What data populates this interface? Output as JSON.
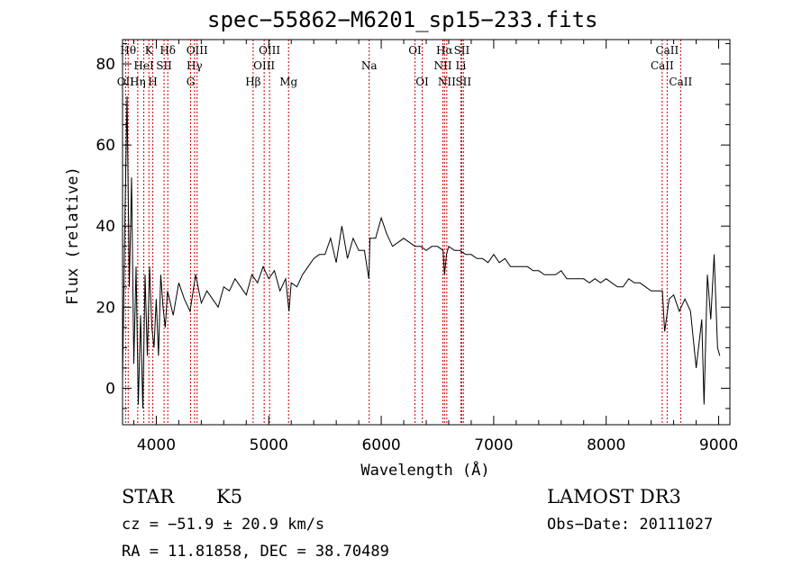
{
  "chart_data": {
    "type": "line",
    "title": "spec−55862−M6201_sp15−233.fits",
    "xlabel": "Wavelength (Å)",
    "ylabel": "Flux (relative)",
    "xlim": [
      3700,
      9100
    ],
    "ylim": [
      -9,
      86
    ],
    "xticks": [
      4000,
      5000,
      6000,
      7000,
      8000,
      9000
    ],
    "yticks": [
      0,
      20,
      40,
      60,
      80
    ],
    "grid": false,
    "series": [
      {
        "name": "flux",
        "x": [
          3700,
          3720,
          3740,
          3760,
          3780,
          3800,
          3820,
          3840,
          3860,
          3880,
          3900,
          3920,
          3940,
          3960,
          3980,
          4000,
          4020,
          4040,
          4060,
          4080,
          4100,
          4150,
          4200,
          4250,
          4300,
          4350,
          4400,
          4450,
          4500,
          4550,
          4600,
          4650,
          4700,
          4750,
          4800,
          4850,
          4900,
          4950,
          5000,
          5050,
          5100,
          5150,
          5180,
          5200,
          5250,
          5300,
          5350,
          5400,
          5450,
          5500,
          5550,
          5600,
          5650,
          5700,
          5750,
          5800,
          5850,
          5890,
          5900,
          5950,
          6000,
          6050,
          6100,
          6150,
          6200,
          6250,
          6300,
          6350,
          6400,
          6450,
          6500,
          6550,
          6563,
          6580,
          6600,
          6650,
          6700,
          6750,
          6800,
          6850,
          6900,
          6950,
          7000,
          7050,
          7100,
          7150,
          7200,
          7250,
          7300,
          7350,
          7400,
          7450,
          7500,
          7550,
          7600,
          7650,
          7700,
          7750,
          7800,
          7850,
          7900,
          7950,
          8000,
          8050,
          8100,
          8150,
          8200,
          8250,
          8300,
          8350,
          8400,
          8450,
          8500,
          8520,
          8560,
          8600,
          8650,
          8700,
          8750,
          8800,
          8850,
          8870,
          8900,
          8930,
          8960,
          8990,
          9010
        ],
        "values": [
          2,
          40,
          72,
          25,
          52,
          6,
          30,
          -4,
          18,
          -5,
          28,
          8,
          30,
          15,
          10,
          22,
          8,
          28,
          20,
          15,
          24,
          18,
          26,
          22,
          19,
          28,
          21,
          24,
          22,
          20,
          25,
          24,
          27,
          25,
          23,
          28,
          26,
          30,
          27,
          29,
          24,
          27,
          19,
          26,
          25,
          28,
          30,
          32,
          33,
          33,
          37,
          31,
          40,
          32,
          37,
          34,
          34,
          27,
          37,
          37,
          42,
          38,
          35,
          36,
          37,
          36,
          35,
          35,
          34,
          35,
          35,
          34,
          28,
          33,
          35,
          34,
          34,
          33,
          33,
          32,
          32,
          31,
          33,
          31,
          32,
          30,
          30,
          30,
          30,
          29,
          29,
          28,
          28,
          28,
          29,
          27,
          27,
          27,
          27,
          26,
          27,
          26,
          27,
          26,
          25,
          25,
          27,
          26,
          26,
          25,
          24,
          24,
          24,
          14,
          22,
          23,
          19,
          22,
          19,
          5,
          17,
          -4,
          28,
          17,
          33,
          10,
          8
        ]
      }
    ],
    "lines": [
      {
        "label": "OII",
        "wave": 3727,
        "row": 2
      },
      {
        "label": "Hθ",
        "wave": 3750,
        "row": 0
      },
      {
        "label": "Hη",
        "wave": 3835,
        "row": 2
      },
      {
        "label": "HeI",
        "wave": 3889,
        "row": 1
      },
      {
        "label": "K",
        "wave": 3934,
        "row": 0
      },
      {
        "label": "H",
        "wave": 3969,
        "row": 2
      },
      {
        "label": "SII",
        "wave": 4069,
        "row": 1
      },
      {
        "label": "Hδ",
        "wave": 4102,
        "row": 0
      },
      {
        "label": "G",
        "wave": 4305,
        "row": 2
      },
      {
        "label": "Hγ",
        "wave": 4340,
        "row": 1
      },
      {
        "label": "OIII",
        "wave": 4363,
        "row": 0
      },
      {
        "label": "Hβ",
        "wave": 4861,
        "row": 2
      },
      {
        "label": "OIII",
        "wave": 4959,
        "row": 1
      },
      {
        "label": "OIII",
        "wave": 5007,
        "row": 0
      },
      {
        "label": "Mg",
        "wave": 5176,
        "row": 2
      },
      {
        "label": "Na",
        "wave": 5893,
        "row": 1
      },
      {
        "label": "OI",
        "wave": 6300,
        "row": 0
      },
      {
        "label": "OI",
        "wave": 6364,
        "row": 2
      },
      {
        "label": "NII",
        "wave": 6548,
        "row": 1
      },
      {
        "label": "Hα",
        "wave": 6563,
        "row": 0
      },
      {
        "label": "NII",
        "wave": 6583,
        "row": 2
      },
      {
        "label": "Li",
        "wave": 6708,
        "row": 1
      },
      {
        "label": "SII",
        "wave": 6716,
        "row": 0
      },
      {
        "label": "SII",
        "wave": 6731,
        "row": 2
      },
      {
        "label": "CaII",
        "wave": 8498,
        "row": 1
      },
      {
        "label": "CaII",
        "wave": 8542,
        "row": 0
      },
      {
        "label": "CaII",
        "wave": 8662,
        "row": 2
      }
    ],
    "line_color": "#cc0000"
  },
  "info": {
    "class": "STAR",
    "subclass": "K5",
    "survey": "LAMOST DR3",
    "cz": "cz = −51.9 ± 20.9 km/s",
    "obs_date": "Obs−Date: 20111027",
    "radec": "RA =  11.81858, DEC =  38.70489"
  }
}
